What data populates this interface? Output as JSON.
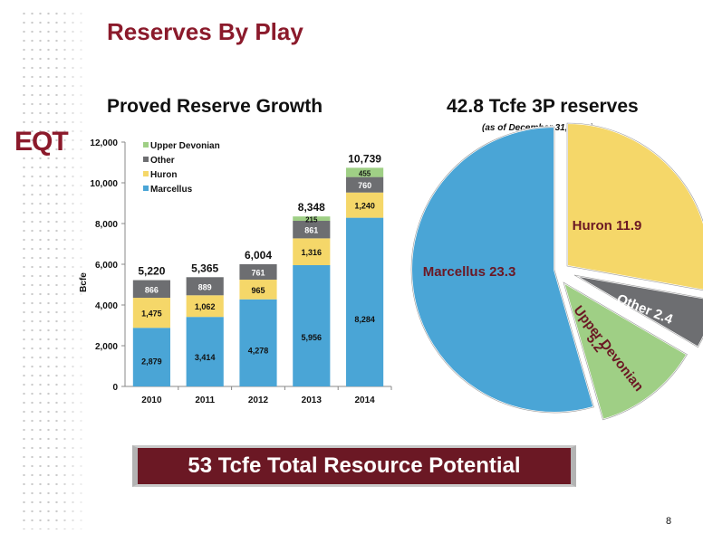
{
  "page": {
    "title": "Reserves By Play",
    "logo_text": "EQT",
    "page_number": "8",
    "banner": "53 Tcfe Total Resource Potential"
  },
  "chart_data": [
    {
      "type": "bar",
      "stacked": true,
      "title": "Proved Reserve Growth",
      "xlabel": "",
      "ylabel": "Bcfe",
      "ylim": [
        0,
        12000
      ],
      "yticks": [
        "0",
        "2,000",
        "4,000",
        "6,000",
        "8,000",
        "10,000",
        "12,000"
      ],
      "categories": [
        "2010",
        "2011",
        "2012",
        "2013",
        "2014"
      ],
      "series": [
        {
          "name": "Marcellus",
          "color": "#4aa5d6",
          "values": [
            2879,
            3414,
            4278,
            5956,
            8284
          ],
          "labels": [
            "2,879",
            "3,414",
            "4,278",
            "5,956",
            "8,284"
          ]
        },
        {
          "name": "Huron",
          "color": "#f5d769",
          "values": [
            1475,
            1062,
            965,
            1316,
            1240
          ],
          "labels": [
            "1,475",
            "1,062",
            "965",
            "1,316",
            "1,240"
          ]
        },
        {
          "name": "Other",
          "color": "#6d6e71",
          "values": [
            866,
            889,
            761,
            861,
            760
          ],
          "labels": [
            "866",
            "889",
            "761",
            "861",
            "760"
          ]
        },
        {
          "name": "Upper Devonian",
          "color": "#9fcf85",
          "values": [
            0,
            0,
            0,
            215,
            455
          ],
          "labels": [
            "",
            "",
            "",
            "215",
            "455"
          ]
        }
      ],
      "totals": [
        "5,220",
        "5,365",
        "6,004",
        "8,348",
        "10,739"
      ],
      "legend": "top-left",
      "grid": false
    },
    {
      "type": "pie",
      "title": "42.8 Tcfe 3P reserves",
      "subtitle": "(as of December 31, 2014)",
      "slices": [
        {
          "name": "Marcellus",
          "value": 23.3,
          "label": "Marcellus 23.3",
          "color": "#4aa5d6"
        },
        {
          "name": "Huron",
          "value": 11.9,
          "label": "Huron 11.9",
          "color": "#f5d769"
        },
        {
          "name": "Other",
          "value": 2.4,
          "label": "Other 2.4",
          "color": "#6d6e71"
        },
        {
          "name": "Upper Devonian",
          "value": 5.2,
          "label": "Upper Devonian 5.2",
          "color": "#9fcf85"
        }
      ]
    }
  ]
}
